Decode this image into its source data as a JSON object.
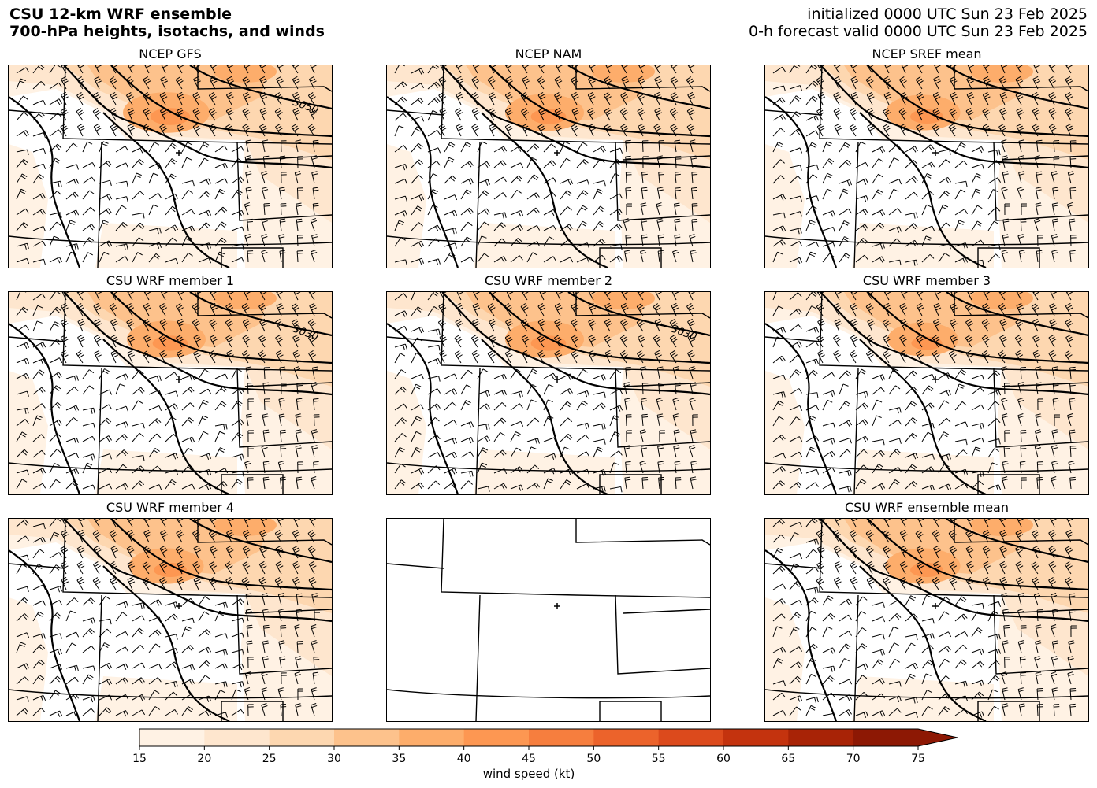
{
  "header": {
    "title_line1": "CSU 12-km WRF ensemble",
    "title_line2": "700-hPa heights, isotachs, and winds",
    "init_line": "initialized 0000 UTC Sun 23 Feb 2025",
    "valid_line": "0-h forecast valid 0000 UTC Sun 23 Feb 2025"
  },
  "panels": [
    {
      "title": "NCEP GFS",
      "contour_label": "3050",
      "has_data": true,
      "jet_strength": 0.9
    },
    {
      "title": "NCEP NAM",
      "contour_label": "",
      "has_data": true,
      "jet_strength": 0.8
    },
    {
      "title": "NCEP SREF mean",
      "contour_label": "",
      "has_data": true,
      "jet_strength": 0.75
    },
    {
      "title": "CSU WRF member 1",
      "contour_label": "3030",
      "has_data": true,
      "jet_strength": 0.8
    },
    {
      "title": "CSU WRF member 2",
      "contour_label": "3030",
      "has_data": true,
      "jet_strength": 0.8
    },
    {
      "title": "CSU WRF member 3",
      "contour_label": "",
      "has_data": true,
      "jet_strength": 0.7
    },
    {
      "title": "CSU WRF member 4",
      "contour_label": "",
      "has_data": true,
      "jet_strength": 0.75
    },
    {
      "title": "",
      "contour_label": "",
      "has_data": false,
      "jet_strength": 0
    },
    {
      "title": "CSU WRF ensemble mean",
      "contour_label": "",
      "has_data": true,
      "jet_strength": 0.75
    }
  ],
  "colorbar": {
    "label": "wind speed (kt)",
    "ticks": [
      "15",
      "20",
      "25",
      "30",
      "35",
      "40",
      "45",
      "50",
      "55",
      "60",
      "65",
      "70",
      "75"
    ],
    "colors": [
      "#fff2e4",
      "#fee6ce",
      "#fdd7b0",
      "#fdc28c",
      "#fdad6b",
      "#fd9752",
      "#f67e3e",
      "#ec632b",
      "#dc4a1c",
      "#c4330e",
      "#a82306",
      "#8d1804"
    ],
    "extend": "max"
  }
}
